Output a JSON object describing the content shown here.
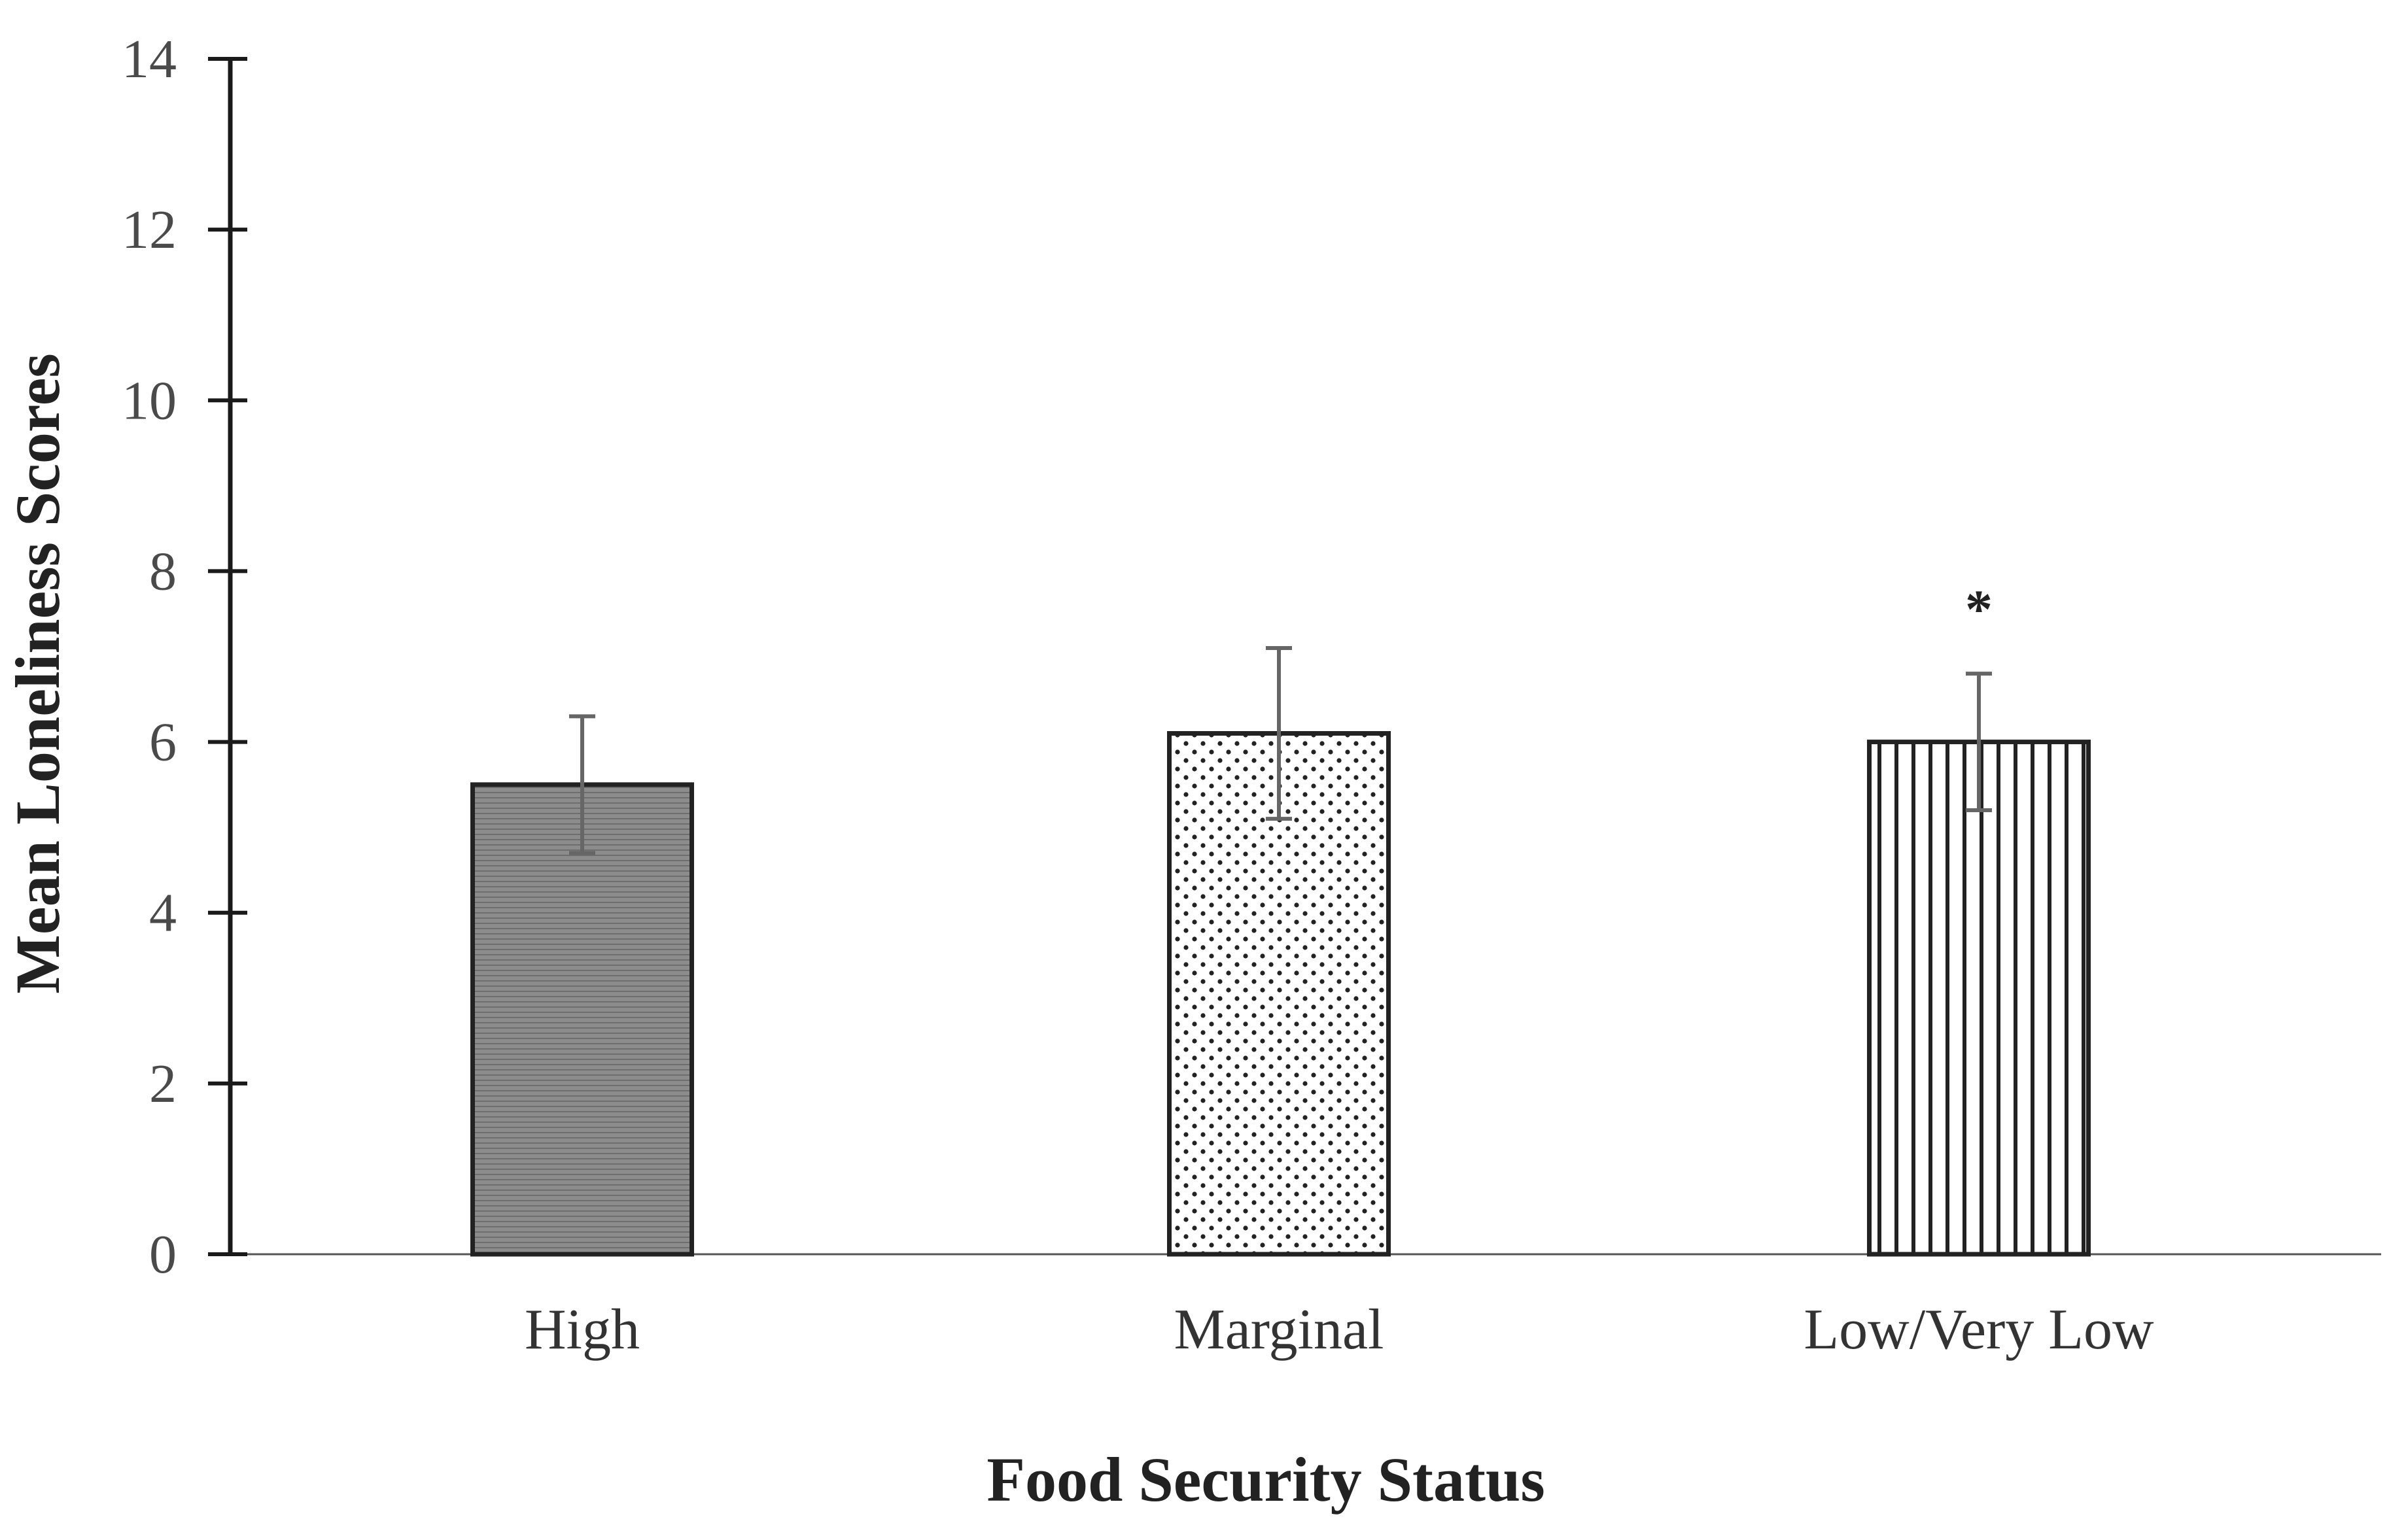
{
  "chart_data": {
    "type": "bar",
    "title": "",
    "xlabel": "Food Security Status",
    "ylabel": "Mean Loneliness Scores",
    "ylim": [
      0,
      14
    ],
    "yticks": [
      0,
      2,
      4,
      6,
      8,
      10,
      12,
      14
    ],
    "grid": false,
    "legend": "none",
    "categories": [
      "High",
      "Marginal",
      "Low/Very Low"
    ],
    "values": [
      5.5,
      6.1,
      6.0
    ],
    "error_low": [
      4.7,
      5.1,
      5.2
    ],
    "error_high": [
      6.3,
      7.1,
      6.8
    ],
    "patterns": [
      "horizontal-lines",
      "dots",
      "vertical-lines"
    ],
    "annotations": [
      {
        "category": "Low/Very Low",
        "text": "*",
        "y": 7.8
      }
    ]
  },
  "colors": {
    "axis": "#1a1a1a",
    "bar_outline": "#222222",
    "error_bar": "#666666",
    "high_fill": "#8a8a8a",
    "high_lines": "#6f6f6f"
  }
}
